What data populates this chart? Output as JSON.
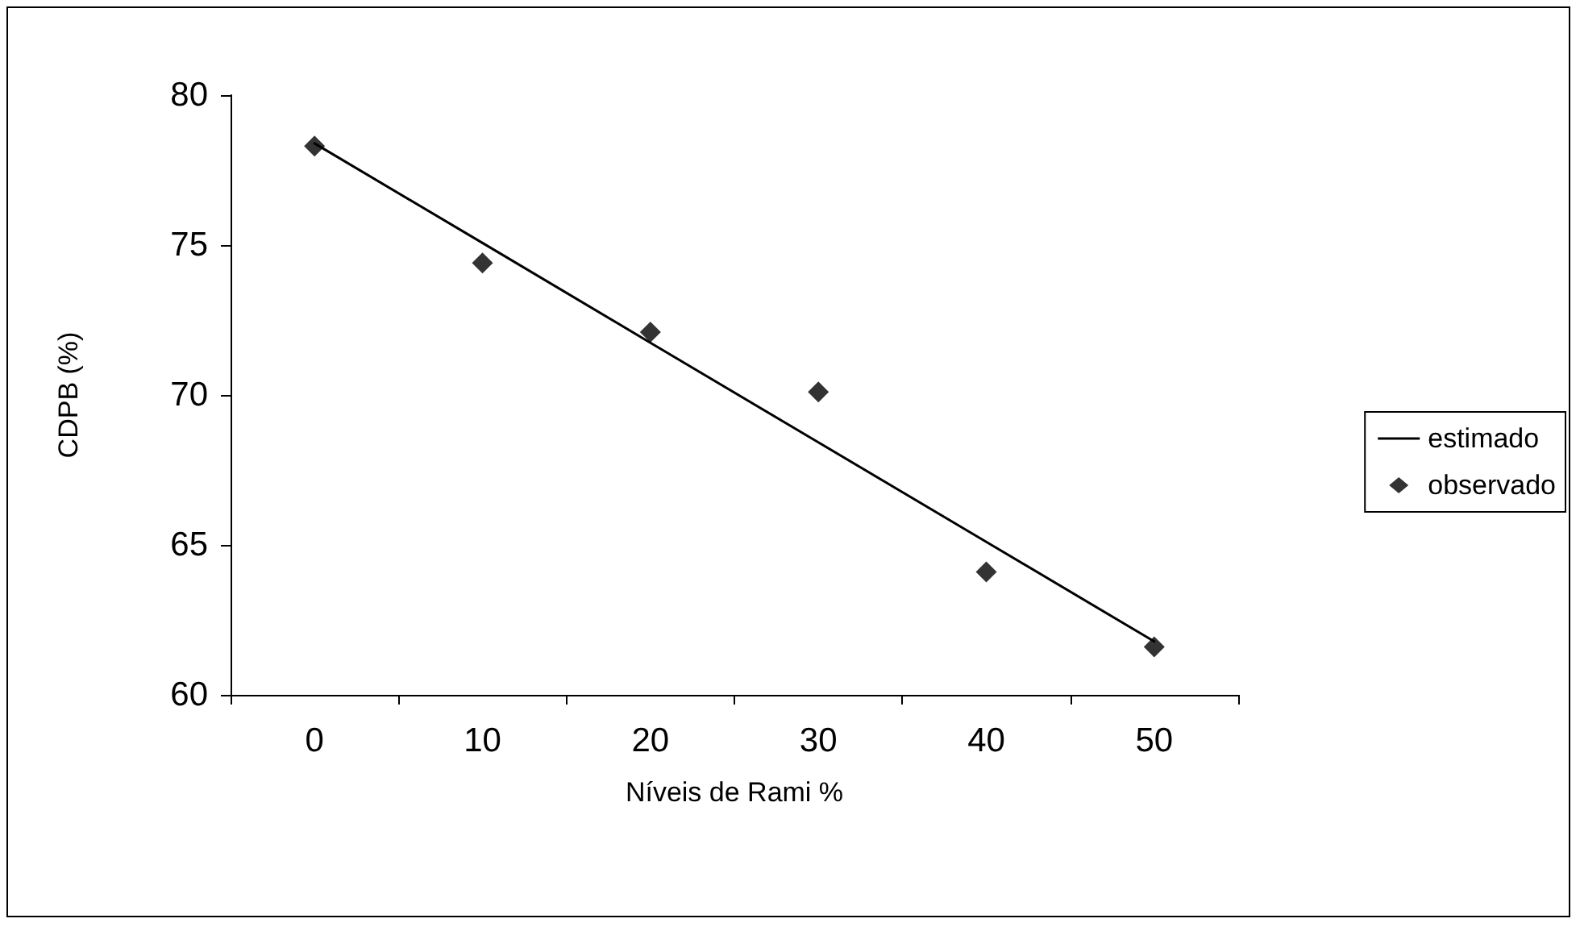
{
  "chart_data": {
    "type": "scatter",
    "xlabel": "Níveis de Rami %",
    "ylabel": "CDPB (%)",
    "categories": [
      "0",
      "10",
      "20",
      "30",
      "40",
      "50"
    ],
    "series": [
      {
        "name": "estimado",
        "type": "line",
        "color": "#000000",
        "marker": "none",
        "values": [
          78.39,
          75.07,
          71.74,
          68.42,
          65.1,
          61.78
        ]
      },
      {
        "name": "observado",
        "color": "#000000",
        "marker": "diamond",
        "values": [
          78.3,
          74.4,
          72.1,
          70.1,
          64.1,
          61.6
        ]
      }
    ],
    "ylim": [
      60,
      80
    ],
    "yticks": [
      60,
      65,
      70,
      75,
      80
    ],
    "grid": false,
    "legend": "right"
  }
}
